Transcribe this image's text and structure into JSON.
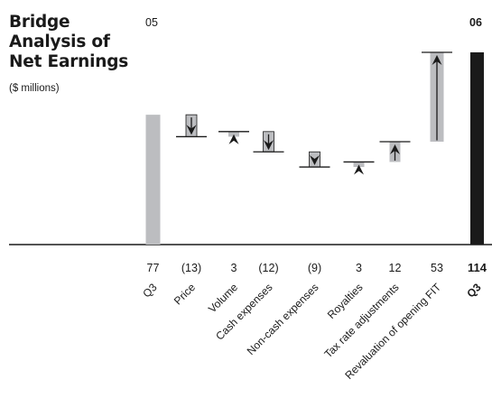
{
  "header": {
    "title_lines": [
      "Bridge",
      "Analysis of",
      "Net Earnings"
    ],
    "subtitle": "($ millions)",
    "year_left": "05",
    "year_right": "06"
  },
  "colors": {
    "grey_bar": "#bcbdc0",
    "black_bar": "#1a1a1a",
    "line": "#1a1a1a"
  },
  "chart_data": {
    "type": "bar",
    "subtype": "waterfall",
    "categories": [
      "Q3",
      "Price",
      "Volume",
      "Cash expenses",
      "Non-cash expenses",
      "Royalties",
      "Tax rate adjustments",
      "Revaluation of opening FIT",
      "Q3"
    ],
    "value_labels": [
      "77",
      "(13)",
      "3",
      "(12)",
      "(9)",
      "3",
      "12",
      "53",
      "114"
    ],
    "values": [
      77,
      -13,
      3,
      -12,
      -9,
      3,
      12,
      53,
      114
    ],
    "measure": [
      "total",
      "relative",
      "relative",
      "relative",
      "relative",
      "relative",
      "relative",
      "relative",
      "total"
    ],
    "period_labels": [
      "05",
      "06"
    ],
    "ylim": [
      0,
      114
    ],
    "xlabel": "",
    "ylabel": "",
    "grid": false,
    "legend": "none"
  }
}
